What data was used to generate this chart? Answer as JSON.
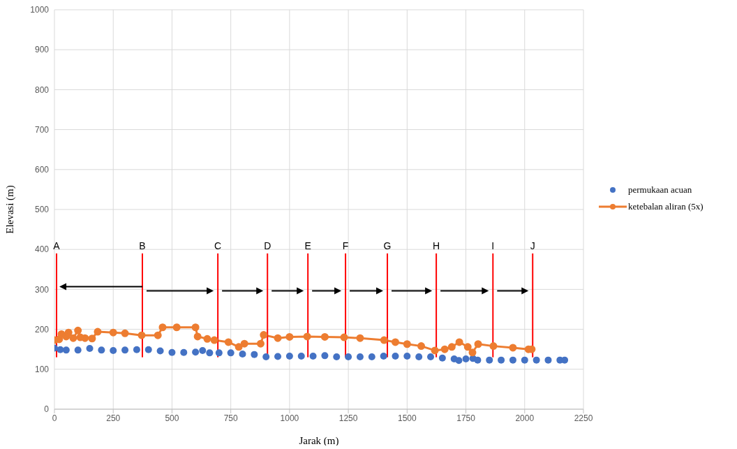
{
  "chart_data": {
    "type": "scatter",
    "xlabel": "Jarak (m)",
    "ylabel": "Elevasi (m)",
    "xlim": [
      0,
      2250
    ],
    "xticks": [
      0,
      250,
      500,
      750,
      1000,
      1250,
      1500,
      1750,
      2000,
      2250
    ],
    "ylim": [
      0,
      1000
    ],
    "yticks": [
      0,
      100,
      200,
      300,
      400,
      500,
      600,
      700,
      800,
      900,
      1000
    ],
    "grid": true,
    "legend": "right",
    "marker": "circle",
    "series": [
      {
        "name": "permukaan acuan",
        "color": "#4472c4",
        "x": [
          0,
          25,
          50,
          100,
          150,
          200,
          250,
          300,
          350,
          400,
          450,
          500,
          550,
          600,
          630,
          660,
          700,
          750,
          800,
          850,
          900,
          950,
          1000,
          1050,
          1100,
          1150,
          1200,
          1250,
          1300,
          1350,
          1400,
          1450,
          1500,
          1550,
          1600,
          1650,
          1700,
          1720,
          1750,
          1780,
          1800,
          1850,
          1900,
          1950,
          2000,
          2050,
          2100,
          2150,
          2170
        ],
        "values": [
          153,
          149,
          148,
          148,
          152,
          148,
          147,
          148,
          149,
          149,
          146,
          142,
          142,
          143,
          147,
          141,
          141,
          141,
          138,
          137,
          131,
          132,
          133,
          133,
          133,
          134,
          131,
          131,
          131,
          131,
          133,
          133,
          133,
          131,
          131,
          128,
          126,
          122,
          126,
          127,
          123,
          123,
          123,
          123,
          123,
          123,
          123,
          123,
          123
        ]
      },
      {
        "name": "ketebalan aliran (5x)",
        "type": "line",
        "color": "#ed7d31",
        "x": [
          0,
          20,
          30,
          50,
          60,
          80,
          100,
          110,
          130,
          160,
          184,
          250,
          300,
          371,
          440,
          460,
          520,
          600,
          609,
          650,
          680,
          740,
          784,
          808,
          877,
          890,
          950,
          1000,
          1075,
          1150,
          1232,
          1300,
          1402,
          1450,
          1500,
          1560,
          1618,
          1660,
          1690,
          1722,
          1758,
          1778,
          1802,
          1867,
          1950,
          2016,
          2030
        ],
        "values": [
          173,
          175,
          188,
          182,
          192,
          178,
          197,
          180,
          178,
          177,
          194,
          192,
          190,
          185,
          185,
          205,
          205,
          205,
          182,
          176,
          173,
          168,
          156,
          164,
          164,
          186,
          178,
          181,
          182,
          181,
          180,
          178,
          173,
          168,
          163,
          158,
          147,
          150,
          156,
          168,
          156,
          142,
          163,
          158,
          154,
          150,
          150
        ]
      }
    ],
    "ref_lines": [
      {
        "axis": "x",
        "value": 9,
        "label": "A",
        "color": "#ff0000"
      },
      {
        "axis": "x",
        "value": 374,
        "label": "B",
        "color": "#ff0000"
      },
      {
        "axis": "x",
        "value": 695,
        "label": "C",
        "color": "#ff0000"
      },
      {
        "axis": "x",
        "value": 906,
        "label": "D",
        "color": "#ff0000"
      },
      {
        "axis": "x",
        "value": 1078,
        "label": "E",
        "color": "#ff0000"
      },
      {
        "axis": "x",
        "value": 1238,
        "label": "F",
        "color": "#ff0000"
      },
      {
        "axis": "x",
        "value": 1416,
        "label": "G",
        "color": "#ff0000"
      },
      {
        "axis": "x",
        "value": 1624,
        "label": "H",
        "color": "#ff0000"
      },
      {
        "axis": "x",
        "value": 1865,
        "label": "I",
        "color": "#ff0000"
      },
      {
        "axis": "x",
        "value": 2034,
        "label": "J",
        "color": "#ff0000"
      }
    ]
  }
}
